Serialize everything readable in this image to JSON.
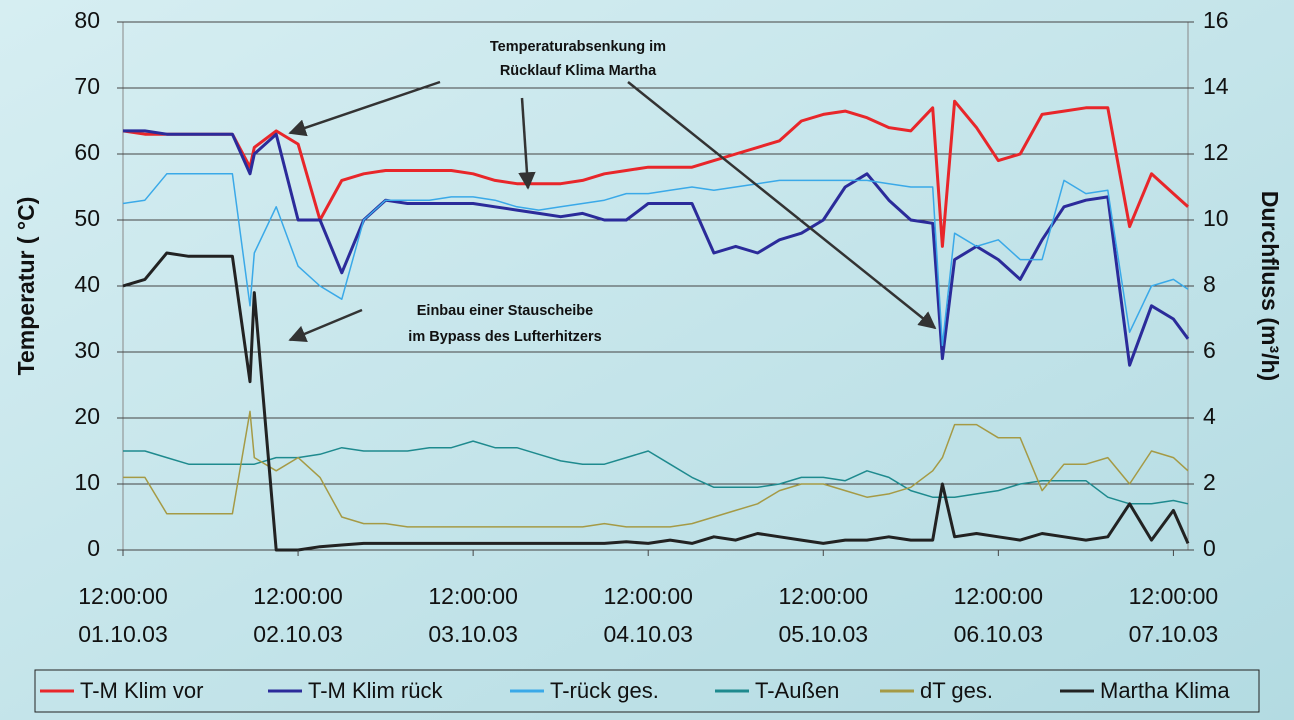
{
  "chart_data": {
    "type": "line",
    "ylabel": "Temperatur ( °C)",
    "y2label": "Durchfluss (m³/h)",
    "ylim": [
      0,
      80
    ],
    "yticks": [
      0,
      10,
      20,
      30,
      40,
      50,
      60,
      70,
      80
    ],
    "y2lim": [
      0,
      16
    ],
    "y2ticks": [
      0,
      2,
      4,
      6,
      8,
      10,
      12,
      14,
      16
    ],
    "xlim": [
      "01.10.03 12:00",
      "07.10.03 14:00"
    ],
    "xticks": [
      {
        "value": "01.10.03 12:00",
        "label": [
          "12:00:00",
          "01.10.03"
        ]
      },
      {
        "value": "02.10.03 12:00",
        "label": [
          "12:00:00",
          "02.10.03"
        ]
      },
      {
        "value": "03.10.03 12:00",
        "label": [
          "12:00:00",
          "03.10.03"
        ]
      },
      {
        "value": "04.10.03 12:00",
        "label": [
          "12:00:00",
          "04.10.03"
        ]
      },
      {
        "value": "05.10.03 12:00",
        "label": [
          "12:00:00",
          "05.10.03"
        ]
      },
      {
        "value": "06.10.03 12:00",
        "label": [
          "12:00:00",
          "06.10.03"
        ]
      },
      {
        "value": "07.10.03 12:00",
        "label": [
          "12:00:00",
          "07.10.03"
        ]
      }
    ],
    "grid": true,
    "legend": "bottom",
    "annotations": [
      {
        "lines": [
          "Temperaturabsenkung im",
          "Rücklauf Klima Martha"
        ]
      },
      {
        "lines": [
          "Einbau einer Stauscheibe",
          "im Bypass des Lufterhitzers"
        ]
      }
    ],
    "x": [
      "01.10.03 12:00",
      "01.10.03 15:00",
      "01.10.03 18:00",
      "01.10.03 21:00",
      "02.10.03 00:00",
      "02.10.03 03:00",
      "02.10.03 05:25",
      "02.10.03 06:00",
      "02.10.03 09:00",
      "02.10.03 12:00",
      "02.10.03 15:00",
      "02.10.03 18:00",
      "02.10.03 21:00",
      "03.10.03 00:00",
      "03.10.03 03:00",
      "03.10.03 06:00",
      "03.10.03 09:00",
      "03.10.03 12:00",
      "03.10.03 15:00",
      "03.10.03 18:00",
      "03.10.03 21:00",
      "04.10.03 00:00",
      "04.10.03 03:00",
      "04.10.03 06:00",
      "04.10.03 09:00",
      "04.10.03 12:00",
      "04.10.03 15:00",
      "04.10.03 18:00",
      "04.10.03 21:00",
      "05.10.03 00:00",
      "05.10.03 03:00",
      "05.10.03 06:00",
      "05.10.03 09:00",
      "05.10.03 12:00",
      "05.10.03 15:00",
      "05.10.03 18:00",
      "05.10.03 21:00",
      "06.10.03 00:00",
      "06.10.03 03:00",
      "06.10.03 04:20",
      "06.10.03 06:00",
      "06.10.03 09:00",
      "06.10.03 12:00",
      "06.10.03 15:00",
      "06.10.03 18:00",
      "06.10.03 21:00",
      "07.10.03 00:00",
      "07.10.03 03:00",
      "07.10.03 06:00",
      "07.10.03 09:00",
      "07.10.03 12:00",
      "07.10.03 14:00"
    ],
    "series": [
      {
        "name": "T-M Klim vor",
        "color": "#e8262a",
        "width": 3,
        "values": [
          63.5,
          63,
          63,
          63,
          63,
          63,
          58,
          61,
          63.5,
          61.5,
          50,
          56,
          57,
          57.5,
          57.5,
          57.5,
          57.5,
          57,
          56,
          55.5,
          55.5,
          55.5,
          56,
          57,
          57.5,
          58,
          58,
          58,
          59,
          60,
          61,
          62,
          65,
          66,
          66.5,
          65.5,
          64,
          63.5,
          67,
          46,
          68,
          64,
          59,
          60,
          66,
          66.5,
          67,
          67,
          49,
          57,
          54,
          52
        ]
      },
      {
        "name": "T-M Klim rück",
        "color": "#2b2b9a",
        "width": 3,
        "values": [
          63.5,
          63.5,
          63,
          63,
          63,
          63,
          57,
          60,
          63,
          50,
          50,
          42,
          50,
          53,
          52.5,
          52.5,
          52.5,
          52.5,
          52,
          51.5,
          51,
          50.5,
          51,
          50,
          50,
          52.5,
          52.5,
          52.5,
          45,
          46,
          45,
          47,
          48,
          50,
          55,
          57,
          53,
          50,
          49.5,
          29,
          44,
          46,
          44,
          41,
          47,
          52,
          53,
          53.5,
          28,
          37,
          35,
          32
        ]
      },
      {
        "name": "T-rück ges.",
        "color": "#3aa9e8",
        "width": 1.5,
        "values": [
          52.5,
          53,
          57,
          57,
          57,
          57,
          37,
          45,
          52,
          43,
          40,
          38,
          50,
          53,
          53,
          53,
          53.5,
          53.5,
          53,
          52,
          51.5,
          52,
          52.5,
          53,
          54,
          54,
          54.5,
          55,
          54.5,
          55,
          55.5,
          56,
          56,
          56,
          56,
          56,
          55.5,
          55,
          55,
          31,
          48,
          46,
          47,
          44,
          44,
          56,
          54,
          54.5,
          33,
          40,
          41,
          39.5
        ]
      },
      {
        "name": "T-Außen",
        "color": "#1e8a8e",
        "width": 1.5,
        "values": [
          15,
          15,
          14,
          13,
          13,
          13,
          13,
          13,
          14,
          14,
          14.5,
          15.5,
          15,
          15,
          15,
          15.5,
          15.5,
          16.5,
          15.5,
          15.5,
          14.5,
          13.5,
          13,
          13,
          14,
          15,
          13,
          11,
          9.5,
          9.5,
          9.5,
          10,
          11,
          11,
          10.5,
          12,
          11,
          9,
          8,
          8,
          8,
          8.5,
          9,
          10,
          10.5,
          10.5,
          10.5,
          8,
          7,
          7,
          7.5,
          7
        ]
      },
      {
        "name": "dT ges.",
        "color": "#a59a45",
        "width": 1.5,
        "values": [
          11,
          11,
          5.5,
          5.5,
          5.5,
          5.5,
          21,
          14,
          12,
          14,
          11,
          5,
          4,
          4,
          3.5,
          3.5,
          3.5,
          3.5,
          3.5,
          3.5,
          3.5,
          3.5,
          3.5,
          4,
          3.5,
          3.5,
          3.5,
          4,
          5,
          6,
          7,
          9,
          10,
          10,
          9,
          8,
          8.5,
          9.5,
          12,
          14,
          19,
          19,
          17,
          17,
          9,
          13,
          13,
          14,
          10,
          15,
          14,
          12
        ]
      },
      {
        "name": "Martha Klima",
        "color": "#222222",
        "width": 3,
        "axis": "y2",
        "values": [
          8,
          8.2,
          9,
          8.9,
          8.9,
          8.9,
          5.1,
          7.8,
          0,
          0,
          0.1,
          0.15,
          0.2,
          0.2,
          0.2,
          0.2,
          0.2,
          0.2,
          0.2,
          0.2,
          0.2,
          0.2,
          0.2,
          0.2,
          0.25,
          0.2,
          0.3,
          0.2,
          0.4,
          0.3,
          0.5,
          0.4,
          0.3,
          0.2,
          0.3,
          0.3,
          0.4,
          0.3,
          0.3,
          2,
          0.4,
          0.5,
          0.4,
          0.3,
          0.5,
          0.4,
          0.3,
          0.4,
          1.4,
          0.3,
          1.2,
          0.2
        ]
      }
    ]
  }
}
